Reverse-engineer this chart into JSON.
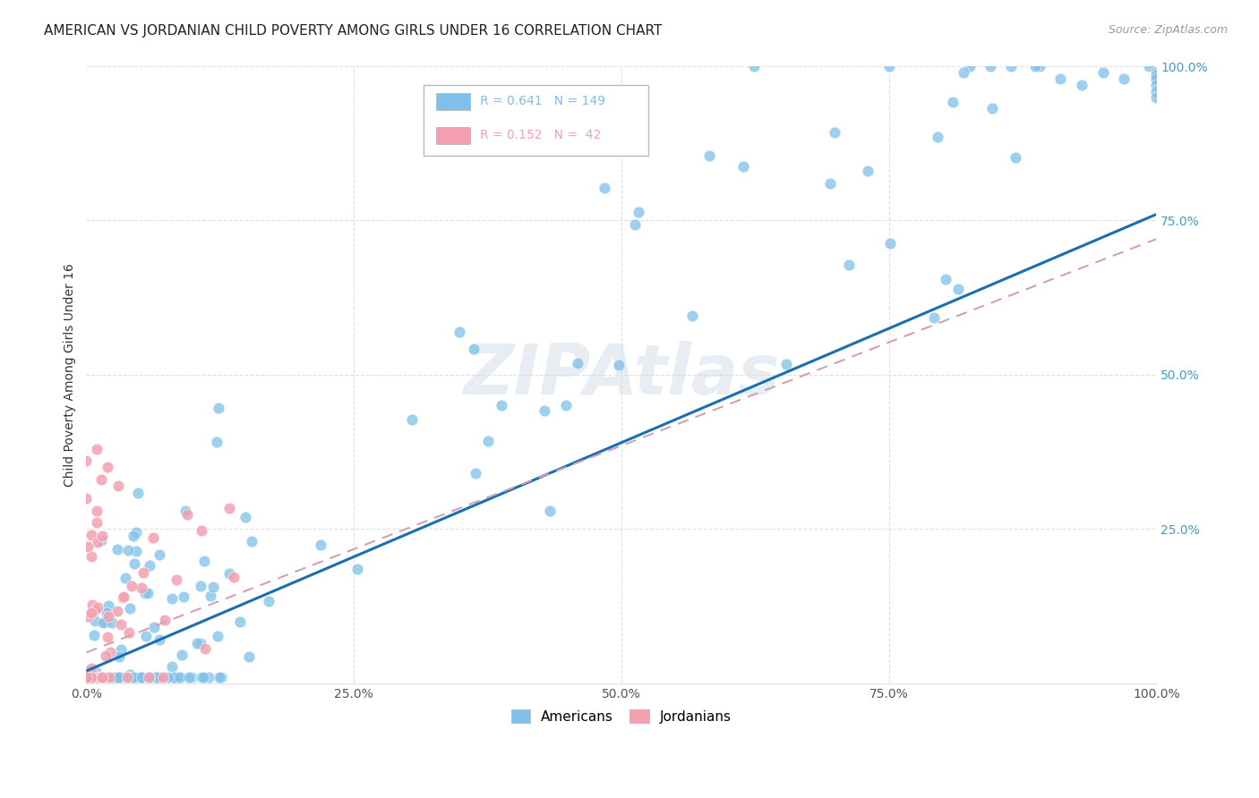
{
  "title": "AMERICAN VS JORDANIAN CHILD POVERTY AMONG GIRLS UNDER 16 CORRELATION CHART",
  "source": "Source: ZipAtlas.com",
  "ylabel": "Child Poverty Among Girls Under 16",
  "xlim": [
    0.0,
    1.0
  ],
  "ylim": [
    0.0,
    1.0
  ],
  "xticks": [
    0.0,
    0.25,
    0.5,
    0.75,
    1.0
  ],
  "yticks": [
    0.25,
    0.5,
    0.75,
    1.0
  ],
  "xticklabels": [
    "0.0%",
    "25.0%",
    "50.0%",
    "75.0%",
    "100.0%"
  ],
  "yticklabels": [
    "25.0%",
    "50.0%",
    "75.0%",
    "100.0%"
  ],
  "legend_entries": [
    {
      "label": "Americans",
      "R": "0.641",
      "N": "149",
      "color": "#7fbfea"
    },
    {
      "label": "Jordanians",
      "R": "0.152",
      "N": " 42",
      "color": "#f4a0b0"
    }
  ],
  "blue_color": "#7fbfea",
  "pink_color": "#f4a0b0",
  "trendline_blue": "#1a6faf",
  "trendline_pink": "#d4a0b0",
  "watermark_color": "#d0dce8",
  "watermark_text": "ZIPAtlas",
  "title_fontsize": 11,
  "axis_label_fontsize": 10,
  "tick_fontsize": 10,
  "right_tick_color": "#4499cc",
  "grid_color": "#e0e0e0"
}
